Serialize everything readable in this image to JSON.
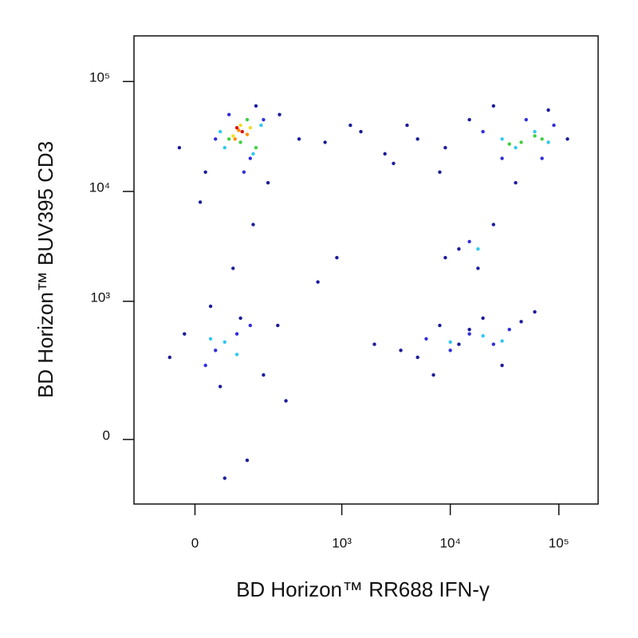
{
  "chart_data": {
    "type": "scatter",
    "xlabel": "BD Horizon™ RR688 IFN-γ",
    "ylabel": "BD Horizon™ BUV395 CD3",
    "xscale": "biexponential",
    "yscale": "biexponential",
    "xlim": [
      -150,
      230000
    ],
    "ylim": [
      -200,
      260000
    ],
    "xticks": [
      0,
      {
        "value": 1000,
        "label": "10³"
      },
      {
        "value": 10000,
        "label": "10⁴"
      },
      {
        "value": 100000,
        "label": "10⁵"
      }
    ],
    "yticks": [
      0,
      {
        "value": 1000,
        "label": "10³"
      },
      {
        "value": 10000,
        "label": "10⁴"
      },
      {
        "value": 100000,
        "label": "10⁵"
      }
    ],
    "series": [
      {
        "color": "#1c1c9c",
        "x": [
          20,
          200,
          -30,
          150,
          260,
          400,
          700,
          1500,
          2500,
          4000,
          8000,
          15000,
          25000,
          40000,
          80000,
          120000,
          5000,
          9000,
          3000,
          1200,
          30,
          -50,
          100,
          180,
          250,
          50,
          -20,
          120,
          5000,
          8000,
          12000,
          20000,
          30000,
          45000,
          60000,
          3500,
          7000,
          15000,
          12000,
          18000,
          25000,
          9000,
          600,
          2000,
          900,
          300,
          10,
          60,
          140,
          80
        ],
        "y": [
          15000,
          12000,
          25000,
          60000,
          50000,
          30000,
          28000,
          35000,
          22000,
          40000,
          15000,
          45000,
          60000,
          12000,
          55000,
          30000,
          30000,
          25000,
          18000,
          40000,
          900,
          300,
          700,
          200,
          600,
          150,
          500,
          -50,
          300,
          600,
          400,
          700,
          250,
          650,
          800,
          350,
          200,
          550,
          3000,
          2000,
          5000,
          2500,
          1500,
          400,
          2500,
          100,
          8000,
          -100,
          5000,
          2000
        ]
      },
      {
        "color": "#3030e0",
        "x": [
          40,
          130,
          180,
          70,
          110,
          30000,
          50000,
          70000,
          20000,
          90000,
          40,
          90,
          20,
          130,
          6000,
          10000,
          15000,
          25000,
          35000,
          15000
        ],
        "y": [
          30000,
          20000,
          45000,
          50000,
          15000,
          20000,
          45000,
          20000,
          35000,
          40000,
          350,
          500,
          250,
          600,
          450,
          350,
          500,
          400,
          550,
          3500
        ]
      },
      {
        "color": "#30c8f0",
        "x": [
          60,
          140,
          170,
          50,
          40000,
          60000,
          30000,
          80000,
          60,
          90,
          30,
          10000,
          20000,
          30000,
          18000
        ],
        "y": [
          25000,
          22000,
          40000,
          35000,
          25000,
          35000,
          30000,
          28000,
          420,
          320,
          450,
          420,
          480,
          430,
          3000
        ]
      },
      {
        "color": "#40d040",
        "x": [
          70,
          120,
          150,
          100,
          45000,
          60000,
          35000,
          70000
        ],
        "y": [
          30000,
          45000,
          25000,
          28000,
          28000,
          32000,
          27000,
          30000
        ]
      },
      {
        "color": "#f0e020",
        "x": [
          80,
          130,
          100
        ],
        "y": [
          32000,
          38000,
          40000
        ]
      },
      {
        "color": "#ff8c00",
        "x": [
          95,
          120,
          85
        ],
        "y": [
          36000,
          33000,
          30000
        ]
      },
      {
        "color": "#e01010",
        "x": [
          105,
          90
        ],
        "y": [
          35000,
          38000
        ]
      }
    ]
  }
}
